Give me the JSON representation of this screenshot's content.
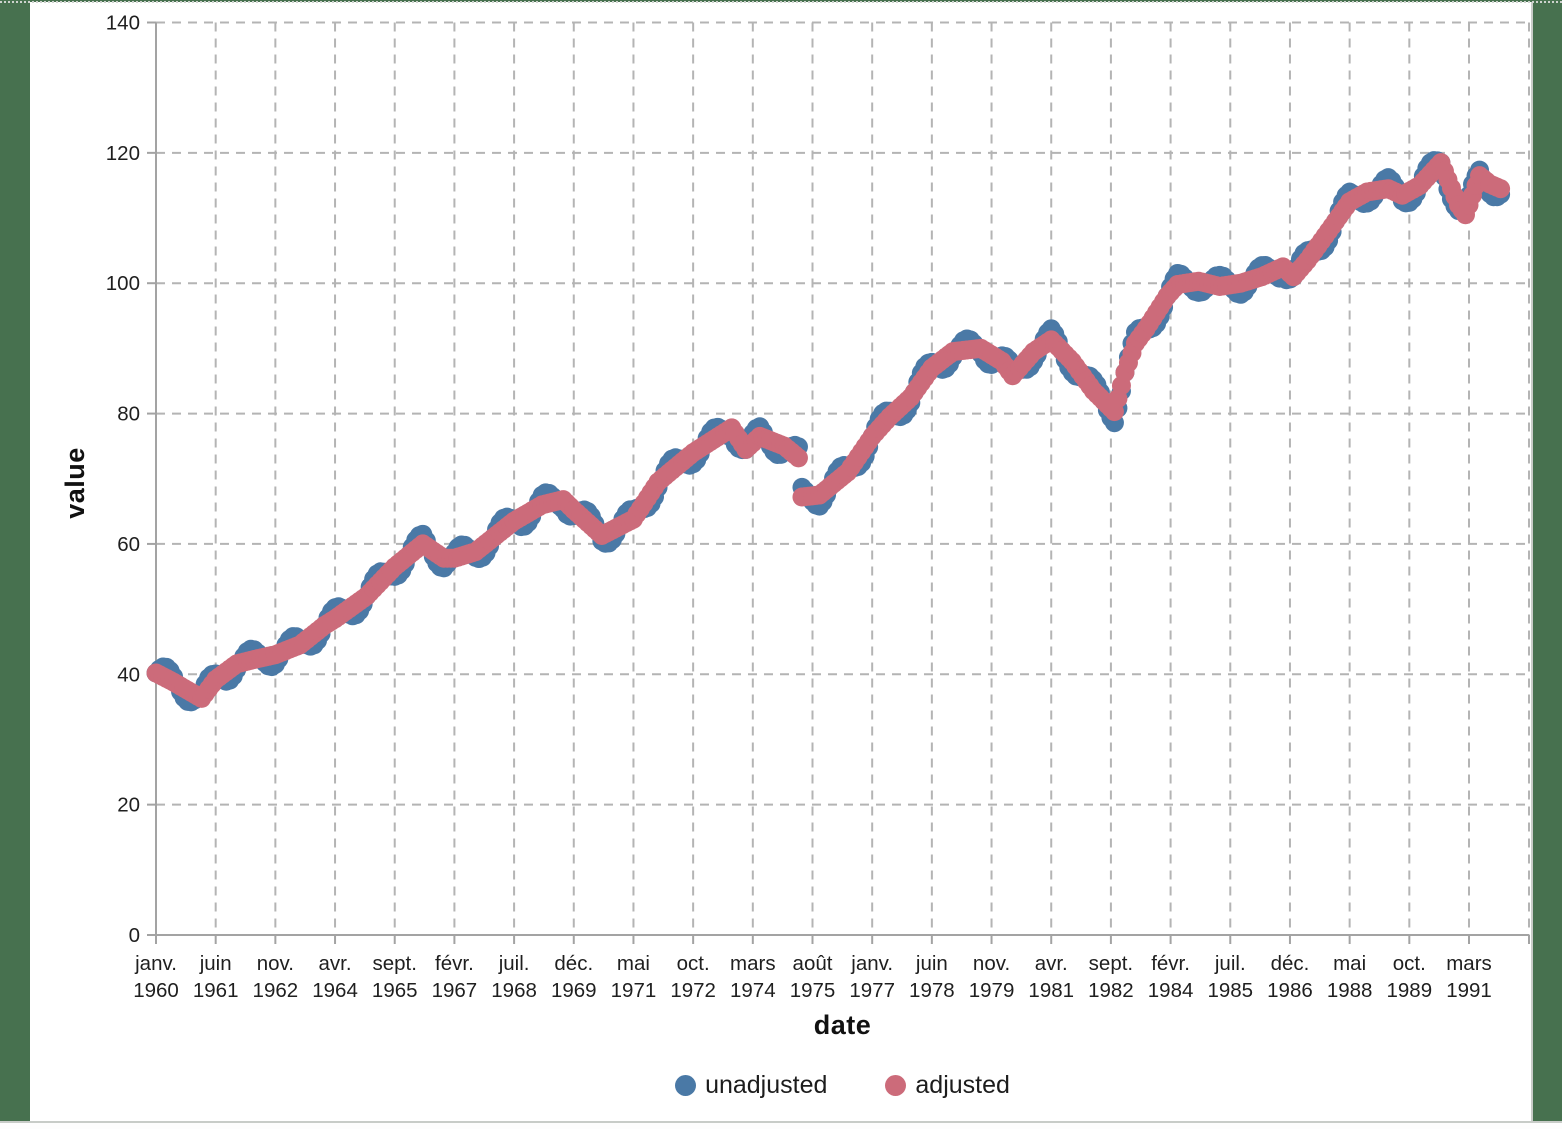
{
  "page": {
    "background_color": "#47714F",
    "panel_color": "#FFFFFF",
    "panel_border_color": "#C8CCC8",
    "grid_color": "#B4B4B4",
    "axis_color": "#A3A3A3",
    "tick_label_color": "#1F1F1F"
  },
  "chart_data": {
    "type": "scatter",
    "title": "",
    "xlabel": "date",
    "ylabel": "value",
    "ylim": [
      0,
      140
    ],
    "y_ticks": [
      0,
      20,
      40,
      60,
      80,
      100,
      120,
      140
    ],
    "x_start": "janv. 1960",
    "x_end": "déc. 1991",
    "points_frequency": "monthly",
    "interpolation": "linear",
    "grid": "dashed-both-axes",
    "legend_position": "bottom-center",
    "months_total": 384,
    "x_ticks": [
      {
        "month_offset": 0,
        "line1": "janv.",
        "line2": "1960"
      },
      {
        "month_offset": 17,
        "line1": "juin",
        "line2": "1961"
      },
      {
        "month_offset": 34,
        "line1": "nov.",
        "line2": "1962"
      },
      {
        "month_offset": 51,
        "line1": "avr.",
        "line2": "1964"
      },
      {
        "month_offset": 68,
        "line1": "sept.",
        "line2": "1965"
      },
      {
        "month_offset": 85,
        "line1": "févr.",
        "line2": "1967"
      },
      {
        "month_offset": 102,
        "line1": "juil.",
        "line2": "1968"
      },
      {
        "month_offset": 119,
        "line1": "déc.",
        "line2": "1969"
      },
      {
        "month_offset": 136,
        "line1": "mai",
        "line2": "1971"
      },
      {
        "month_offset": 153,
        "line1": "oct.",
        "line2": "1972"
      },
      {
        "month_offset": 170,
        "line1": "mars",
        "line2": "1974"
      },
      {
        "month_offset": 187,
        "line1": "août",
        "line2": "1975"
      },
      {
        "month_offset": 204,
        "line1": "janv.",
        "line2": "1977"
      },
      {
        "month_offset": 221,
        "line1": "juin",
        "line2": "1978"
      },
      {
        "month_offset": 238,
        "line1": "nov.",
        "line2": "1979"
      },
      {
        "month_offset": 255,
        "line1": "avr.",
        "line2": "1981"
      },
      {
        "month_offset": 272,
        "line1": "sept.",
        "line2": "1982"
      },
      {
        "month_offset": 289,
        "line1": "févr.",
        "line2": "1984"
      },
      {
        "month_offset": 306,
        "line1": "juil.",
        "line2": "1985"
      },
      {
        "month_offset": 323,
        "line1": "déc.",
        "line2": "1986"
      },
      {
        "month_offset": 340,
        "line1": "mai",
        "line2": "1988"
      },
      {
        "month_offset": 357,
        "line1": "oct.",
        "line2": "1989"
      },
      {
        "month_offset": 374,
        "line1": "mars",
        "line2": "1991"
      }
    ],
    "series": [
      {
        "name": "unadjusted",
        "color": "#4A79A6",
        "derivation": "adjusted_plus_seasonal",
        "seasonal_amplitude": 1.7,
        "seasonal_period_months": 12
      },
      {
        "name": "adjusted",
        "color": "#CC6B7A",
        "anchors_month_value": [
          [
            0,
            40.2
          ],
          [
            5,
            38.8
          ],
          [
            13,
            36.3
          ],
          [
            17,
            39.2
          ],
          [
            23,
            41.6
          ],
          [
            29,
            42.4
          ],
          [
            34,
            43.0
          ],
          [
            41,
            44.5
          ],
          [
            48,
            47.5
          ],
          [
            51,
            48.5
          ],
          [
            60,
            52.0
          ],
          [
            68,
            56.5
          ],
          [
            76,
            60.0
          ],
          [
            82,
            57.8
          ],
          [
            85,
            57.8
          ],
          [
            91,
            58.8
          ],
          [
            102,
            63.5
          ],
          [
            110,
            66.0
          ],
          [
            116,
            66.8
          ],
          [
            119,
            65.2
          ],
          [
            127,
            61.3
          ],
          [
            136,
            63.8
          ],
          [
            143,
            69.5
          ],
          [
            153,
            74.0
          ],
          [
            164,
            77.8
          ],
          [
            168,
            74.5
          ],
          [
            172,
            76.5
          ],
          [
            179,
            75.0
          ],
          [
            183,
            73.2
          ],
          [
            184,
            67.2
          ],
          [
            189,
            67.5
          ],
          [
            197,
            71.0
          ],
          [
            204,
            76.5
          ],
          [
            209,
            79.5
          ],
          [
            215,
            82.5
          ],
          [
            221,
            87.0
          ],
          [
            227,
            89.5
          ],
          [
            235,
            90.0
          ],
          [
            241,
            88.0
          ],
          [
            244,
            85.8
          ],
          [
            250,
            89.5
          ],
          [
            255,
            91.3
          ],
          [
            261,
            88.0
          ],
          [
            267,
            83.5
          ],
          [
            273,
            80.3
          ],
          [
            276,
            86.3
          ],
          [
            279,
            90.8
          ],
          [
            282,
            93.0
          ],
          [
            285,
            95.5
          ],
          [
            288,
            98.0
          ],
          [
            291,
            99.8
          ],
          [
            297,
            100.3
          ],
          [
            303,
            99.5
          ],
          [
            309,
            100.0
          ],
          [
            315,
            101.0
          ],
          [
            321,
            102.5
          ],
          [
            324,
            101.0
          ],
          [
            328,
            103.5
          ],
          [
            332,
            106.5
          ],
          [
            336,
            109.5
          ],
          [
            340,
            112.5
          ],
          [
            345,
            114.0
          ],
          [
            351,
            114.5
          ],
          [
            355,
            113.5
          ],
          [
            360,
            115.0
          ],
          [
            366,
            118.5
          ],
          [
            371,
            112.0
          ],
          [
            373,
            110.5
          ],
          [
            377,
            116.5
          ],
          [
            380,
            115.2
          ],
          [
            383,
            114.5
          ]
        ]
      }
    ],
    "legend": [
      "unadjusted",
      "adjusted"
    ]
  }
}
